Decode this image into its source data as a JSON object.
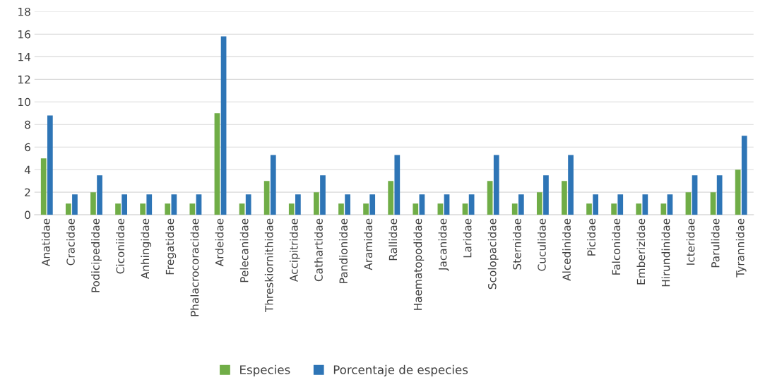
{
  "chart_data": {
    "type": "bar",
    "categories": [
      "Anatidae",
      "Cracidae",
      "Podicipedidae",
      "Ciconiidae",
      "Anhingidae",
      "Fregatidae",
      "Phalacrocoracidae",
      "Ardeidae",
      "Pelecanidae",
      "Threskiornithidae",
      "Accipitridae",
      "Cathartidae",
      "Pandionidae",
      "Aramidae",
      "Rallidae",
      "Haematopodidae",
      "Jacanidae",
      "Laridae",
      "Scolopacidae",
      "Sternidae",
      "Cuculidae",
      "Alcedinidae",
      "Picidae",
      "Falconidae",
      "Emberizidae",
      "Hirundinidae",
      "Icteridae",
      "Parulidae",
      "Tyrannidae"
    ],
    "series": [
      {
        "name": "Especies",
        "color": "#70ad47",
        "values": [
          5,
          1,
          2,
          1,
          1,
          1,
          1,
          9,
          1,
          3,
          1,
          2,
          1,
          1,
          3,
          1,
          1,
          1,
          3,
          1,
          2,
          3,
          1,
          1,
          1,
          1,
          2,
          2,
          4
        ]
      },
      {
        "name": "Porcentaje de especies",
        "color": "#2e75b6",
        "values": [
          8.8,
          1.8,
          3.5,
          1.8,
          1.8,
          1.8,
          1.8,
          15.8,
          1.8,
          5.3,
          1.8,
          3.5,
          1.8,
          1.8,
          5.3,
          1.8,
          1.8,
          1.8,
          5.3,
          1.8,
          3.5,
          5.3,
          1.8,
          1.8,
          1.8,
          1.8,
          3.5,
          3.5,
          7.0
        ]
      }
    ],
    "ylim": [
      0,
      18
    ],
    "yticks": [
      0,
      2,
      4,
      6,
      8,
      10,
      12,
      14,
      16,
      18
    ],
    "grid": "y",
    "legend": "bottom"
  }
}
